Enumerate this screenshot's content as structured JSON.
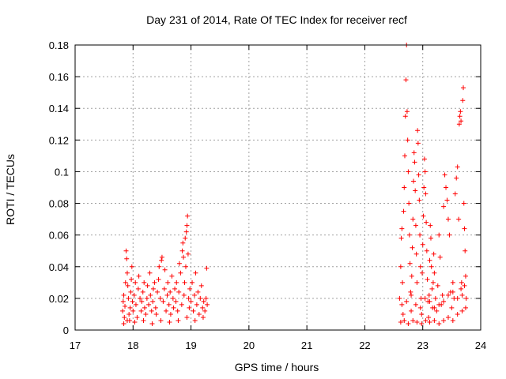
{
  "chart_data": {
    "type": "scatter",
    "title": "Day 231 of 2014, Rate Of TEC Index for receiver recf",
    "xlabel": "GPS time / hours",
    "ylabel": "ROTI / TECUs",
    "xlim": [
      17,
      24
    ],
    "ylim": [
      0,
      0.18
    ],
    "xticks": [
      17,
      18,
      19,
      20,
      21,
      22,
      23,
      24
    ],
    "yticks": [
      0,
      0.02,
      0.04,
      0.06,
      0.08,
      0.1,
      0.12,
      0.14,
      0.16,
      0.18
    ],
    "ytick_labels": [
      "0",
      "0.02",
      "0.04",
      "0.06",
      "0.08",
      "0.1",
      "0.12",
      "0.14",
      "0.16",
      "0.18"
    ],
    "xtick_labels": [
      "17",
      "18",
      "19",
      "20",
      "21",
      "22",
      "23",
      "24"
    ],
    "grid": true,
    "marker": "+",
    "color": "#ff0000",
    "series": [
      {
        "name": "ROTI",
        "points": [
          [
            17.82,
            0.012
          ],
          [
            17.83,
            0.018
          ],
          [
            17.84,
            0.022
          ],
          [
            17.85,
            0.008
          ],
          [
            17.86,
            0.015
          ],
          [
            17.87,
            0.03
          ],
          [
            17.88,
            0.05
          ],
          [
            17.89,
            0.045
          ],
          [
            17.9,
            0.036
          ],
          [
            17.91,
            0.028
          ],
          [
            17.92,
            0.02
          ],
          [
            17.93,
            0.01
          ],
          [
            17.94,
            0.006
          ],
          [
            17.95,
            0.014
          ],
          [
            17.96,
            0.024
          ],
          [
            17.97,
            0.032
          ],
          [
            17.98,
            0.04
          ],
          [
            17.99,
            0.018
          ],
          [
            18.0,
            0.012
          ],
          [
            18.02,
            0.022
          ],
          [
            18.04,
            0.03
          ],
          [
            18.05,
            0.016
          ],
          [
            18.07,
            0.008
          ],
          [
            18.09,
            0.026
          ],
          [
            18.1,
            0.034
          ],
          [
            18.12,
            0.02
          ],
          [
            18.14,
            0.012
          ],
          [
            18.15,
            0.018
          ],
          [
            18.17,
            0.024
          ],
          [
            18.19,
            0.03
          ],
          [
            18.2,
            0.014
          ],
          [
            18.22,
            0.01
          ],
          [
            18.24,
            0.02
          ],
          [
            18.25,
            0.028
          ],
          [
            18.27,
            0.016
          ],
          [
            18.29,
            0.036
          ],
          [
            18.3,
            0.022
          ],
          [
            18.32,
            0.012
          ],
          [
            18.34,
            0.018
          ],
          [
            18.35,
            0.026
          ],
          [
            18.37,
            0.03
          ],
          [
            18.39,
            0.014
          ],
          [
            18.4,
            0.01
          ],
          [
            18.42,
            0.024
          ],
          [
            18.44,
            0.032
          ],
          [
            18.45,
            0.04
          ],
          [
            18.47,
            0.02
          ],
          [
            18.49,
            0.044
          ],
          [
            18.5,
            0.046
          ],
          [
            18.52,
            0.018
          ],
          [
            18.54,
            0.026
          ],
          [
            18.55,
            0.038
          ],
          [
            18.57,
            0.012
          ],
          [
            18.59,
            0.022
          ],
          [
            18.6,
            0.03
          ],
          [
            18.62,
            0.016
          ],
          [
            18.64,
            0.024
          ],
          [
            18.65,
            0.01
          ],
          [
            18.67,
            0.034
          ],
          [
            18.69,
            0.02
          ],
          [
            18.7,
            0.014
          ],
          [
            18.72,
            0.026
          ],
          [
            18.74,
            0.018
          ],
          [
            18.75,
            0.03
          ],
          [
            18.77,
            0.012
          ],
          [
            18.79,
            0.024
          ],
          [
            18.8,
            0.042
          ],
          [
            18.82,
            0.036
          ],
          [
            18.84,
            0.016
          ],
          [
            18.85,
            0.05
          ],
          [
            18.86,
            0.055
          ],
          [
            18.87,
            0.046
          ],
          [
            18.88,
            0.022
          ],
          [
            18.89,
            0.03
          ],
          [
            18.9,
            0.058
          ],
          [
            18.91,
            0.04
          ],
          [
            18.92,
            0.062
          ],
          [
            18.93,
            0.066
          ],
          [
            18.94,
            0.072
          ],
          [
            18.95,
            0.048
          ],
          [
            18.96,
            0.02
          ],
          [
            18.97,
            0.014
          ],
          [
            18.98,
            0.026
          ],
          [
            19.0,
            0.018
          ],
          [
            19.02,
            0.03
          ],
          [
            19.04,
            0.012
          ],
          [
            19.06,
            0.022
          ],
          [
            19.08,
            0.036
          ],
          [
            19.1,
            0.016
          ],
          [
            19.12,
            0.024
          ],
          [
            19.14,
            0.01
          ],
          [
            19.16,
            0.02
          ],
          [
            19.18,
            0.028
          ],
          [
            19.2,
            0.014
          ],
          [
            19.22,
            0.018
          ],
          [
            19.24,
            0.012
          ],
          [
            19.26,
            0.02
          ],
          [
            19.27,
            0.039
          ],
          [
            19.28,
            0.016
          ],
          [
            17.84,
            0.004
          ],
          [
            17.9,
            0.006
          ],
          [
            18.03,
            0.005
          ],
          [
            18.18,
            0.006
          ],
          [
            18.33,
            0.004
          ],
          [
            18.48,
            0.006
          ],
          [
            18.63,
            0.005
          ],
          [
            18.78,
            0.006
          ],
          [
            18.93,
            0.008
          ],
          [
            19.07,
            0.006
          ],
          [
            19.21,
            0.008
          ],
          [
            22.6,
            0.02
          ],
          [
            22.62,
            0.04
          ],
          [
            22.63,
            0.058
          ],
          [
            22.64,
            0.064
          ],
          [
            22.65,
            0.03
          ],
          [
            22.66,
            0.01
          ],
          [
            22.67,
            0.075
          ],
          [
            22.68,
            0.09
          ],
          [
            22.69,
            0.11
          ],
          [
            22.7,
            0.135
          ],
          [
            22.71,
            0.158
          ],
          [
            22.72,
            0.18
          ],
          [
            22.73,
            0.138
          ],
          [
            22.74,
            0.12
          ],
          [
            22.75,
            0.1
          ],
          [
            22.76,
            0.08
          ],
          [
            22.77,
            0.06
          ],
          [
            22.78,
            0.042
          ],
          [
            22.79,
            0.024
          ],
          [
            22.8,
            0.012
          ],
          [
            22.81,
            0.034
          ],
          [
            22.82,
            0.052
          ],
          [
            22.83,
            0.07
          ],
          [
            22.84,
            0.094
          ],
          [
            22.85,
            0.112
          ],
          [
            22.86,
            0.106
          ],
          [
            22.87,
            0.088
          ],
          [
            22.88,
            0.066
          ],
          [
            22.89,
            0.048
          ],
          [
            22.9,
            0.03
          ],
          [
            22.91,
            0.126
          ],
          [
            22.92,
            0.118
          ],
          [
            22.93,
            0.098
          ],
          [
            22.94,
            0.082
          ],
          [
            22.95,
            0.06
          ],
          [
            22.96,
            0.04
          ],
          [
            22.97,
            0.02
          ],
          [
            22.98,
            0.01
          ],
          [
            22.99,
            0.036
          ],
          [
            23.0,
            0.054
          ],
          [
            23.01,
            0.072
          ],
          [
            23.02,
            0.09
          ],
          [
            23.03,
            0.108
          ],
          [
            23.04,
            0.1
          ],
          [
            23.05,
            0.086
          ],
          [
            23.06,
            0.068
          ],
          [
            23.07,
            0.05
          ],
          [
            23.08,
            0.032
          ],
          [
            23.09,
            0.018
          ],
          [
            23.1,
            0.008
          ],
          [
            23.11,
            0.022
          ],
          [
            23.12,
            0.044
          ],
          [
            23.13,
            0.066
          ],
          [
            23.14,
            0.058
          ],
          [
            23.15,
            0.04
          ],
          [
            23.16,
            0.026
          ],
          [
            23.17,
            0.014
          ],
          [
            23.18,
            0.03
          ],
          [
            23.19,
            0.048
          ],
          [
            23.2,
            0.036
          ],
          [
            23.22,
            0.02
          ],
          [
            23.24,
            0.012
          ],
          [
            23.26,
            0.028
          ],
          [
            23.28,
            0.06
          ],
          [
            23.3,
            0.046
          ],
          [
            23.32,
            0.016
          ],
          [
            23.34,
            0.022
          ],
          [
            23.36,
            0.078
          ],
          [
            23.38,
            0.098
          ],
          [
            23.4,
            0.09
          ],
          [
            23.42,
            0.082
          ],
          [
            23.44,
            0.07
          ],
          [
            23.46,
            0.06
          ],
          [
            23.48,
            0.024
          ],
          [
            23.5,
            0.014
          ],
          [
            23.52,
            0.03
          ],
          [
            23.54,
            0.02
          ],
          [
            23.56,
            0.086
          ],
          [
            23.58,
            0.096
          ],
          [
            23.6,
            0.103
          ],
          [
            23.62,
            0.07
          ],
          [
            23.63,
            0.13
          ],
          [
            23.64,
            0.135
          ],
          [
            23.65,
            0.138
          ],
          [
            23.66,
            0.132
          ],
          [
            23.67,
            0.03
          ],
          [
            23.68,
            0.022
          ],
          [
            23.69,
            0.145
          ],
          [
            23.7,
            0.153
          ],
          [
            23.71,
            0.08
          ],
          [
            23.72,
            0.064
          ],
          [
            23.73,
            0.05
          ],
          [
            23.74,
            0.034
          ],
          [
            23.75,
            0.02
          ],
          [
            22.62,
            0.005
          ],
          [
            22.68,
            0.006
          ],
          [
            22.75,
            0.004
          ],
          [
            22.83,
            0.006
          ],
          [
            22.9,
            0.005
          ],
          [
            22.98,
            0.004
          ],
          [
            23.05,
            0.006
          ],
          [
            23.12,
            0.005
          ],
          [
            23.2,
            0.006
          ],
          [
            23.28,
            0.004
          ],
          [
            23.36,
            0.006
          ],
          [
            23.44,
            0.008
          ],
          [
            23.52,
            0.006
          ],
          [
            23.6,
            0.01
          ],
          [
            23.68,
            0.012
          ],
          [
            23.74,
            0.014
          ],
          [
            22.64,
            0.016
          ],
          [
            22.72,
            0.018
          ],
          [
            22.8,
            0.022
          ],
          [
            22.88,
            0.016
          ],
          [
            22.96,
            0.014
          ],
          [
            23.04,
            0.02
          ],
          [
            23.12,
            0.018
          ],
          [
            23.2,
            0.014
          ],
          [
            23.28,
            0.016
          ],
          [
            23.36,
            0.018
          ],
          [
            23.44,
            0.022
          ],
          [
            23.52,
            0.024
          ],
          [
            23.6,
            0.02
          ],
          [
            23.66,
            0.026
          ],
          [
            23.72,
            0.028
          ]
        ]
      }
    ]
  }
}
